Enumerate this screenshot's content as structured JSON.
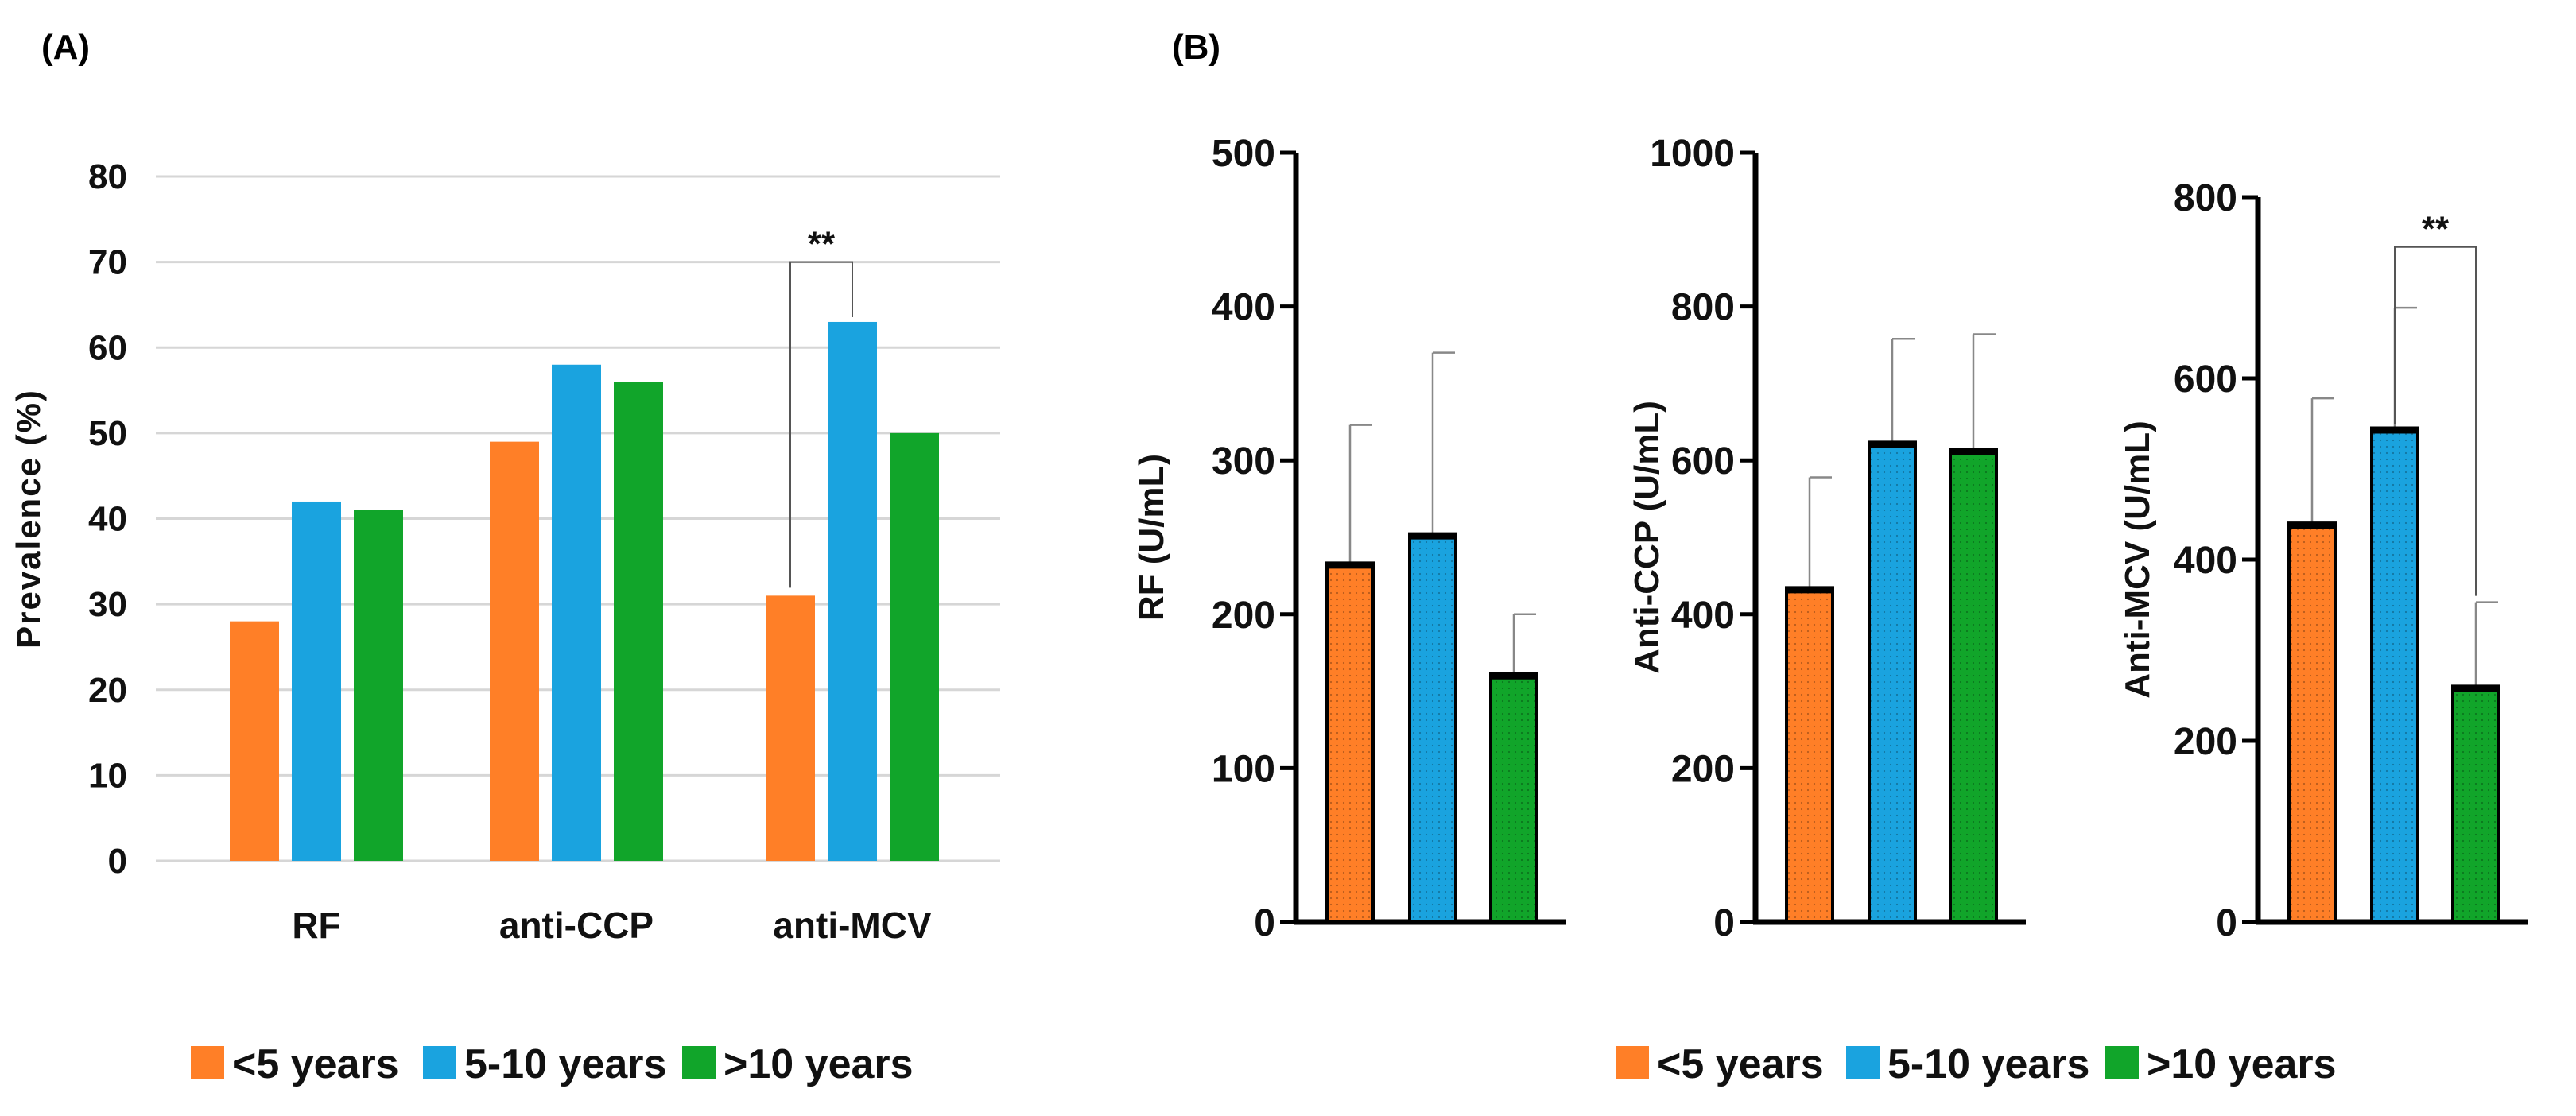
{
  "panels": {
    "a_label": "(A)",
    "b_label": "(B)"
  },
  "colors": {
    "lt5": "#FF7F27",
    "5to10": "#1AA3DF",
    "gt10": "#11A52A"
  },
  "legend": {
    "items": [
      {
        "label": "<5 years",
        "color": "#FF7F27"
      },
      {
        "label": "5-10 years",
        "color": "#1AA3DF"
      },
      {
        "label": ">10 years",
        "color": "#11A52A"
      }
    ]
  },
  "chart_data": [
    {
      "type": "bar",
      "panel": "A",
      "categories": [
        "RF",
        "anti-CCP",
        "anti-MCV"
      ],
      "series": [
        {
          "name": "<5 years",
          "values": [
            28,
            49,
            31
          ]
        },
        {
          "name": "5-10 years",
          "values": [
            42,
            58,
            63
          ]
        },
        {
          "name": ">10 years",
          "values": [
            41,
            56,
            50
          ]
        }
      ],
      "ylabel": "Prevalence (%)",
      "ylim": [
        0,
        80
      ],
      "yticks": [
        0,
        10,
        20,
        30,
        40,
        50,
        60,
        70,
        80
      ],
      "grid": true,
      "annotations": [
        {
          "text": "**",
          "between": [
            "anti-MCV <5 years",
            "anti-MCV 5-10 years"
          ]
        }
      ]
    },
    {
      "type": "bar",
      "panel": "B1",
      "categories": [
        "<5 years",
        "5-10 years",
        ">10 years"
      ],
      "values": [
        232,
        251,
        160
      ],
      "error_upper": [
        323,
        370,
        200
      ],
      "ylabel": "RF (U/mL)",
      "ylim": [
        0,
        500
      ],
      "yticks": [
        0,
        100,
        200,
        300,
        400,
        500
      ]
    },
    {
      "type": "bar",
      "panel": "B2",
      "categories": [
        "<5 years",
        "5-10 years",
        ">10 years"
      ],
      "values": [
        432,
        621,
        611
      ],
      "error_upper": [
        578,
        758,
        764
      ],
      "ylabel": "Anti-CCP (U/mL)",
      "ylim": [
        0,
        1000
      ],
      "yticks": [
        0,
        200,
        400,
        600,
        800,
        1000
      ]
    },
    {
      "type": "bar",
      "panel": "B3",
      "categories": [
        "<5 years",
        "5-10 years",
        ">10 years"
      ],
      "values": [
        438,
        543,
        258
      ],
      "error_upper": [
        578,
        678,
        353
      ],
      "ylabel": "Anti-MCV (U/mL)",
      "ylim": [
        0,
        800
      ],
      "yticks": [
        0,
        200,
        400,
        600,
        800
      ],
      "annotations": [
        {
          "text": "**",
          "between": [
            "5-10 years",
            ">10 years"
          ]
        }
      ]
    }
  ]
}
